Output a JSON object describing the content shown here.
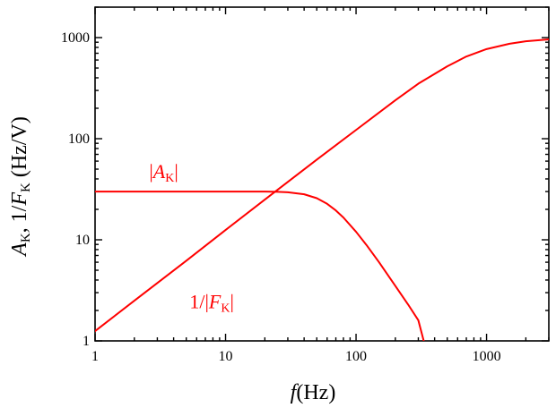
{
  "chart_data": {
    "type": "line",
    "xscale": "log",
    "yscale": "log",
    "xlim": [
      1,
      3000
    ],
    "ylim": [
      1,
      2000
    ],
    "xticks": [
      1,
      10,
      100,
      1000
    ],
    "yticks": [
      1,
      10,
      100,
      1000
    ],
    "xtick_labels": [
      "1",
      "10",
      "100",
      "1000"
    ],
    "ytick_labels": [
      "1",
      "10",
      "100",
      "1000"
    ],
    "xlabel": {
      "italic": "f",
      "rest": "(Hz)"
    },
    "ylabel": {
      "var1": "A",
      "sub1": "K",
      "sep": ", 1/",
      "var2": "F",
      "sub2": "K",
      "unit": " (Hz/V)"
    },
    "grid": false,
    "color": "#ff0000",
    "series": [
      {
        "key": "A_K",
        "x": [
          1,
          2,
          5,
          10,
          15,
          20,
          25,
          30,
          40,
          50,
          60,
          70,
          80,
          100,
          120,
          150,
          200,
          250,
          300,
          330
        ],
        "y": [
          30,
          30,
          30,
          30,
          30,
          30,
          29.8,
          29.5,
          28.2,
          25.8,
          22.7,
          19.5,
          16.6,
          12,
          8.9,
          6,
          3.5,
          2.3,
          1.6,
          1.0
        ]
      },
      {
        "key": "one_over_F_K",
        "x": [
          1,
          2,
          5,
          10,
          20,
          50,
          100,
          200,
          300,
          500,
          700,
          1000,
          1500,
          2000,
          3000
        ],
        "y": [
          1.25,
          2.5,
          6.2,
          12.5,
          25,
          62,
          122,
          240,
          350,
          520,
          650,
          770,
          870,
          920,
          960
        ]
      }
    ],
    "annotations": [
      {
        "key": "A_K",
        "pre": "|",
        "var": "A",
        "sub": "K",
        "post": "|",
        "x": 2.6,
        "y": 41
      },
      {
        "key": "one_over_F_K",
        "pre": "1/|",
        "var": "F",
        "sub": "K",
        "post": "|",
        "x": 5.3,
        "y": 2.1
      }
    ]
  }
}
